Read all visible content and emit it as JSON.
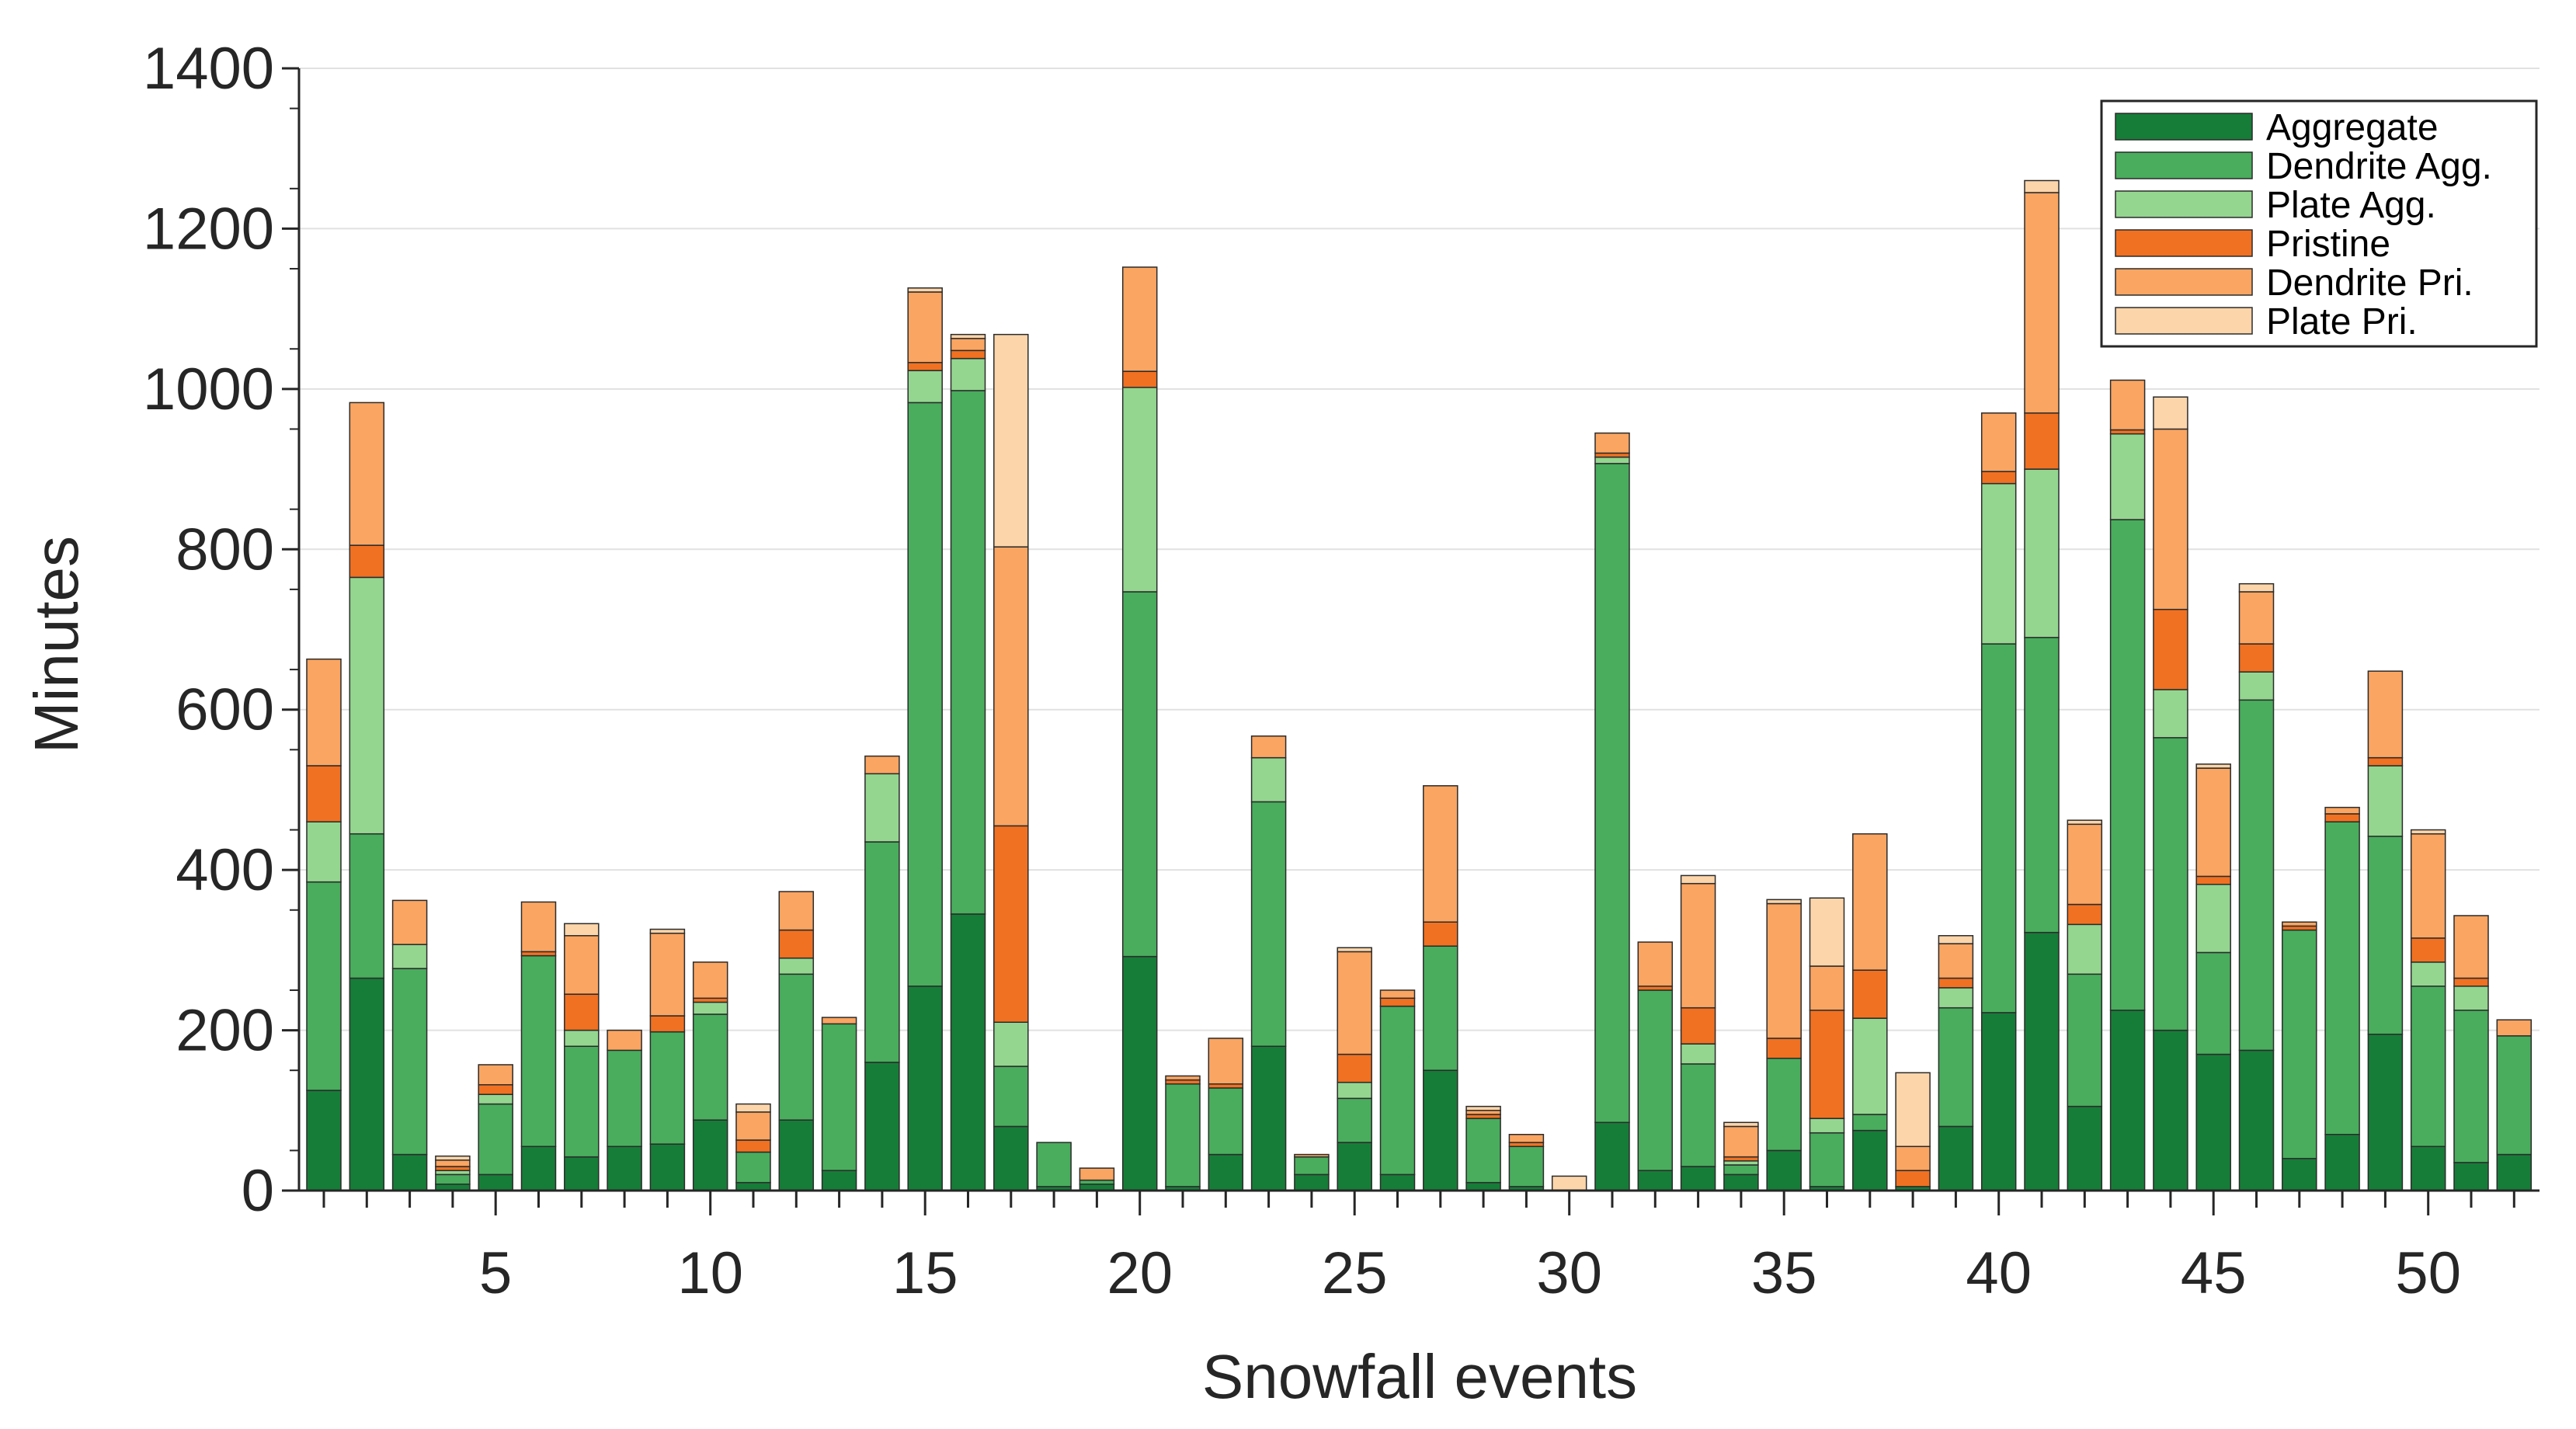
{
  "chart_data": {
    "type": "bar",
    "stacked": true,
    "xlabel": "Snowfall events",
    "ylabel": "Minutes",
    "ylim": [
      0,
      1400
    ],
    "yticks": [
      0,
      200,
      400,
      600,
      800,
      1000,
      1200,
      1400
    ],
    "xticks": [
      5,
      10,
      15,
      20,
      25,
      30,
      35,
      40,
      45,
      50
    ],
    "grid": true,
    "legend_position": "top-right",
    "categories": [
      1,
      2,
      3,
      4,
      5,
      6,
      7,
      8,
      9,
      10,
      11,
      12,
      13,
      14,
      15,
      16,
      17,
      18,
      19,
      20,
      21,
      22,
      23,
      24,
      25,
      26,
      27,
      28,
      29,
      30,
      31,
      32,
      33,
      34,
      35,
      36,
      37,
      38,
      39,
      40,
      41,
      42,
      43,
      44,
      45,
      46,
      47,
      48,
      49,
      50,
      51,
      52
    ],
    "series": [
      {
        "name": "Aggregate",
        "color": "#167d38",
        "values": [
          125,
          265,
          45,
          8,
          20,
          55,
          42,
          55,
          58,
          88,
          10,
          88,
          25,
          160,
          255,
          345,
          80,
          5,
          8,
          292,
          5,
          45,
          180,
          20,
          60,
          20,
          150,
          10,
          5,
          0,
          85,
          25,
          30,
          20,
          50,
          5,
          75,
          5,
          80,
          222,
          322,
          105,
          225,
          200,
          170,
          175,
          40,
          70,
          195,
          55,
          35,
          45
        ]
      },
      {
        "name": "Dendrite Agg.",
        "color": "#49ad5d",
        "values": [
          260,
          180,
          232,
          12,
          88,
          238,
          138,
          120,
          140,
          132,
          38,
          182,
          183,
          275,
          728,
          653,
          75,
          55,
          5,
          455,
          128,
          83,
          305,
          22,
          55,
          210,
          155,
          80,
          50,
          0,
          822,
          225,
          128,
          12,
          115,
          67,
          20,
          0,
          148,
          460,
          368,
          165,
          612,
          365,
          127,
          437,
          285,
          390,
          247,
          200,
          190,
          148
        ]
      },
      {
        "name": "Plate Agg.",
        "color": "#94d690",
        "values": [
          75,
          320,
          30,
          5,
          12,
          0,
          20,
          0,
          0,
          15,
          0,
          20,
          0,
          85,
          40,
          40,
          55,
          0,
          0,
          255,
          0,
          0,
          55,
          0,
          20,
          0,
          0,
          0,
          0,
          0,
          8,
          0,
          25,
          5,
          0,
          18,
          120,
          0,
          25,
          200,
          210,
          62,
          107,
          60,
          85,
          35,
          0,
          0,
          88,
          30,
          30,
          0
        ]
      },
      {
        "name": "Pristine",
        "color": "#f07122",
        "values": [
          70,
          40,
          0,
          5,
          12,
          5,
          45,
          0,
          20,
          5,
          15,
          35,
          0,
          0,
          10,
          10,
          245,
          0,
          0,
          20,
          5,
          5,
          0,
          0,
          35,
          10,
          30,
          5,
          5,
          0,
          5,
          5,
          45,
          5,
          25,
          135,
          60,
          20,
          12,
          15,
          70,
          25,
          5,
          100,
          10,
          35,
          5,
          10,
          10,
          30,
          10,
          0
        ]
      },
      {
        "name": "Dendrite Pri.",
        "color": "#faa562",
        "values": [
          133,
          178,
          55,
          8,
          25,
          62,
          73,
          25,
          103,
          45,
          35,
          48,
          8,
          22,
          88,
          15,
          348,
          0,
          15,
          130,
          5,
          57,
          27,
          3,
          128,
          10,
          170,
          5,
          10,
          0,
          25,
          55,
          155,
          38,
          168,
          55,
          170,
          30,
          43,
          73,
          275,
          100,
          62,
          225,
          135,
          65,
          5,
          8,
          108,
          130,
          78,
          20
        ]
      },
      {
        "name": "Plate Pri.",
        "color": "#fcd5ab",
        "values": [
          0,
          0,
          0,
          5,
          0,
          0,
          15,
          0,
          5,
          0,
          10,
          0,
          0,
          0,
          5,
          5,
          265,
          0,
          0,
          0,
          0,
          0,
          0,
          0,
          5,
          0,
          0,
          5,
          0,
          18,
          0,
          0,
          10,
          5,
          5,
          85,
          0,
          92,
          10,
          0,
          15,
          5,
          0,
          40,
          5,
          10,
          0,
          0,
          0,
          5,
          0,
          0
        ]
      }
    ]
  }
}
